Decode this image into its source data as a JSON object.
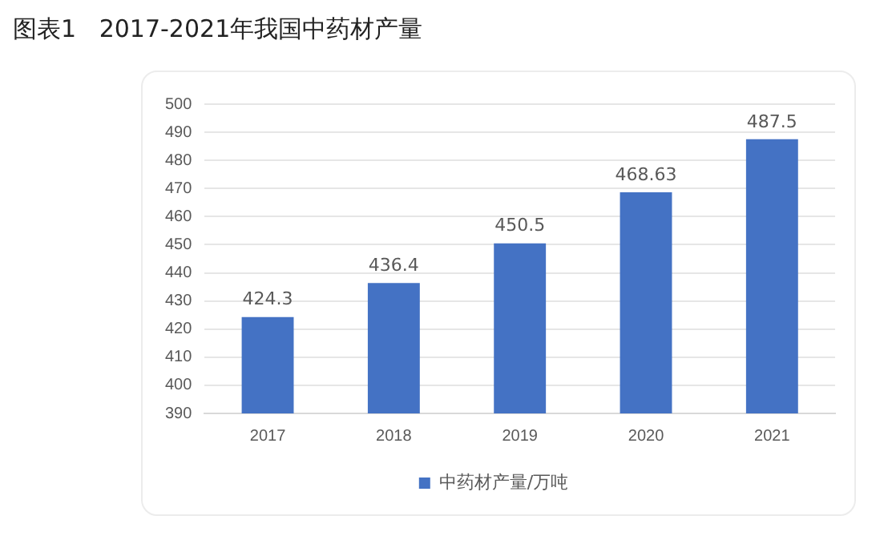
{
  "chart_data": {
    "type": "bar",
    "title": "图表1   2017-2021年我国中药材产量",
    "categories": [
      "2017",
      "2018",
      "2019",
      "2020",
      "2021"
    ],
    "series": [
      {
        "name": "中药材产量/万吨",
        "color": "#4472c4",
        "values": [
          424.3,
          436.4,
          450.5,
          468.63,
          487.5
        ]
      }
    ],
    "ylim": [
      390,
      500
    ],
    "yticks": [
      390,
      400,
      410,
      420,
      430,
      440,
      450,
      460,
      470,
      480,
      490,
      500
    ],
    "grid": "y",
    "legend": "bottom",
    "data_labels": true
  }
}
